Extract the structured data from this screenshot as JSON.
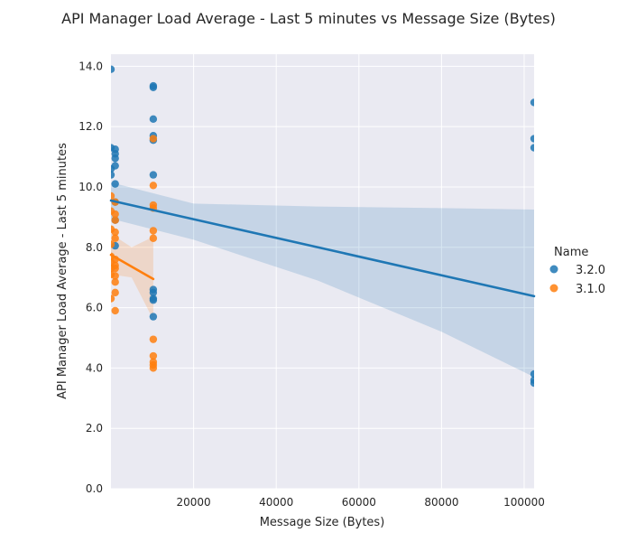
{
  "chart_data": {
    "type": "scatter",
    "title": "API Manager Load Average - Last 5 minutes vs Message Size (Bytes)",
    "xlabel": "Message Size (Bytes)",
    "ylabel": "API Manager Load Average - Last 5 minutes",
    "xlim": [
      0,
      102400
    ],
    "ylim": [
      0,
      14.4
    ],
    "x_ticks": [
      20000,
      40000,
      60000,
      80000,
      100000
    ],
    "x_tick_labels": [
      "20000",
      "40000",
      "60000",
      "80000",
      "100000"
    ],
    "y_ticks": [
      0,
      2,
      4,
      6,
      8,
      10,
      12,
      14
    ],
    "y_tick_labels": [
      "0.0",
      "2.0",
      "4.0",
      "6.0",
      "8.0",
      "10.0",
      "12.0",
      "14.0"
    ],
    "grid": true,
    "legend": {
      "title": "Name",
      "placement": "right"
    },
    "series": [
      {
        "name": "3.2.0",
        "color": "#1f77b4",
        "x": [
          0,
          0,
          0,
          0,
          1024,
          1024,
          1024,
          1024,
          1024,
          1024,
          1024,
          1024,
          10240,
          10240,
          10240,
          10240,
          10240,
          10240,
          10240,
          10240,
          10240,
          10240,
          10240,
          102400,
          102400,
          102400,
          102400,
          102400,
          102400
        ],
        "y": [
          13.9,
          11.3,
          10.6,
          10.4,
          11.25,
          11.1,
          10.95,
          10.7,
          10.1,
          9.5,
          8.9,
          8.05,
          13.35,
          13.3,
          12.25,
          11.7,
          11.55,
          10.4,
          6.6,
          6.5,
          6.3,
          6.25,
          5.7,
          12.8,
          11.6,
          11.3,
          3.8,
          3.6,
          3.5
        ],
        "fit": {
          "start": [
            0,
            9.55
          ],
          "end": [
            102400,
            6.38
          ]
        },
        "ci_band": {
          "x": [
            0,
            20000,
            50000,
            80000,
            102400
          ],
          "lower": [
            8.95,
            8.25,
            6.9,
            5.2,
            3.7
          ],
          "upper": [
            10.15,
            9.45,
            9.35,
            9.3,
            9.25
          ]
        }
      },
      {
        "name": "3.1.0",
        "color": "#ff7f0e",
        "x": [
          0,
          0,
          0,
          0,
          0,
          0,
          0,
          0,
          0,
          1024,
          1024,
          1024,
          1024,
          1024,
          1024,
          1024,
          1024,
          1024,
          1024,
          1024,
          1024,
          10240,
          10240,
          10240,
          10240,
          10240,
          10240,
          10240,
          10240,
          10240,
          10240,
          10240
        ],
        "y": [
          9.7,
          9.2,
          8.6,
          8.1,
          7.7,
          7.5,
          7.3,
          7.1,
          6.3,
          9.5,
          9.1,
          8.9,
          8.5,
          8.3,
          7.6,
          7.4,
          7.3,
          7.05,
          6.85,
          6.5,
          5.9,
          11.6,
          10.05,
          9.4,
          9.3,
          8.55,
          8.3,
          4.95,
          4.4,
          4.2,
          4.1,
          4.0
        ],
        "fit": {
          "start": [
            0,
            7.75
          ],
          "end": [
            10240,
            6.95
          ]
        },
        "ci_band": {
          "x": [
            0,
            5000,
            10240
          ],
          "lower": [
            7.1,
            7.0,
            5.6
          ],
          "upper": [
            8.45,
            8.0,
            8.35
          ]
        }
      }
    ]
  }
}
